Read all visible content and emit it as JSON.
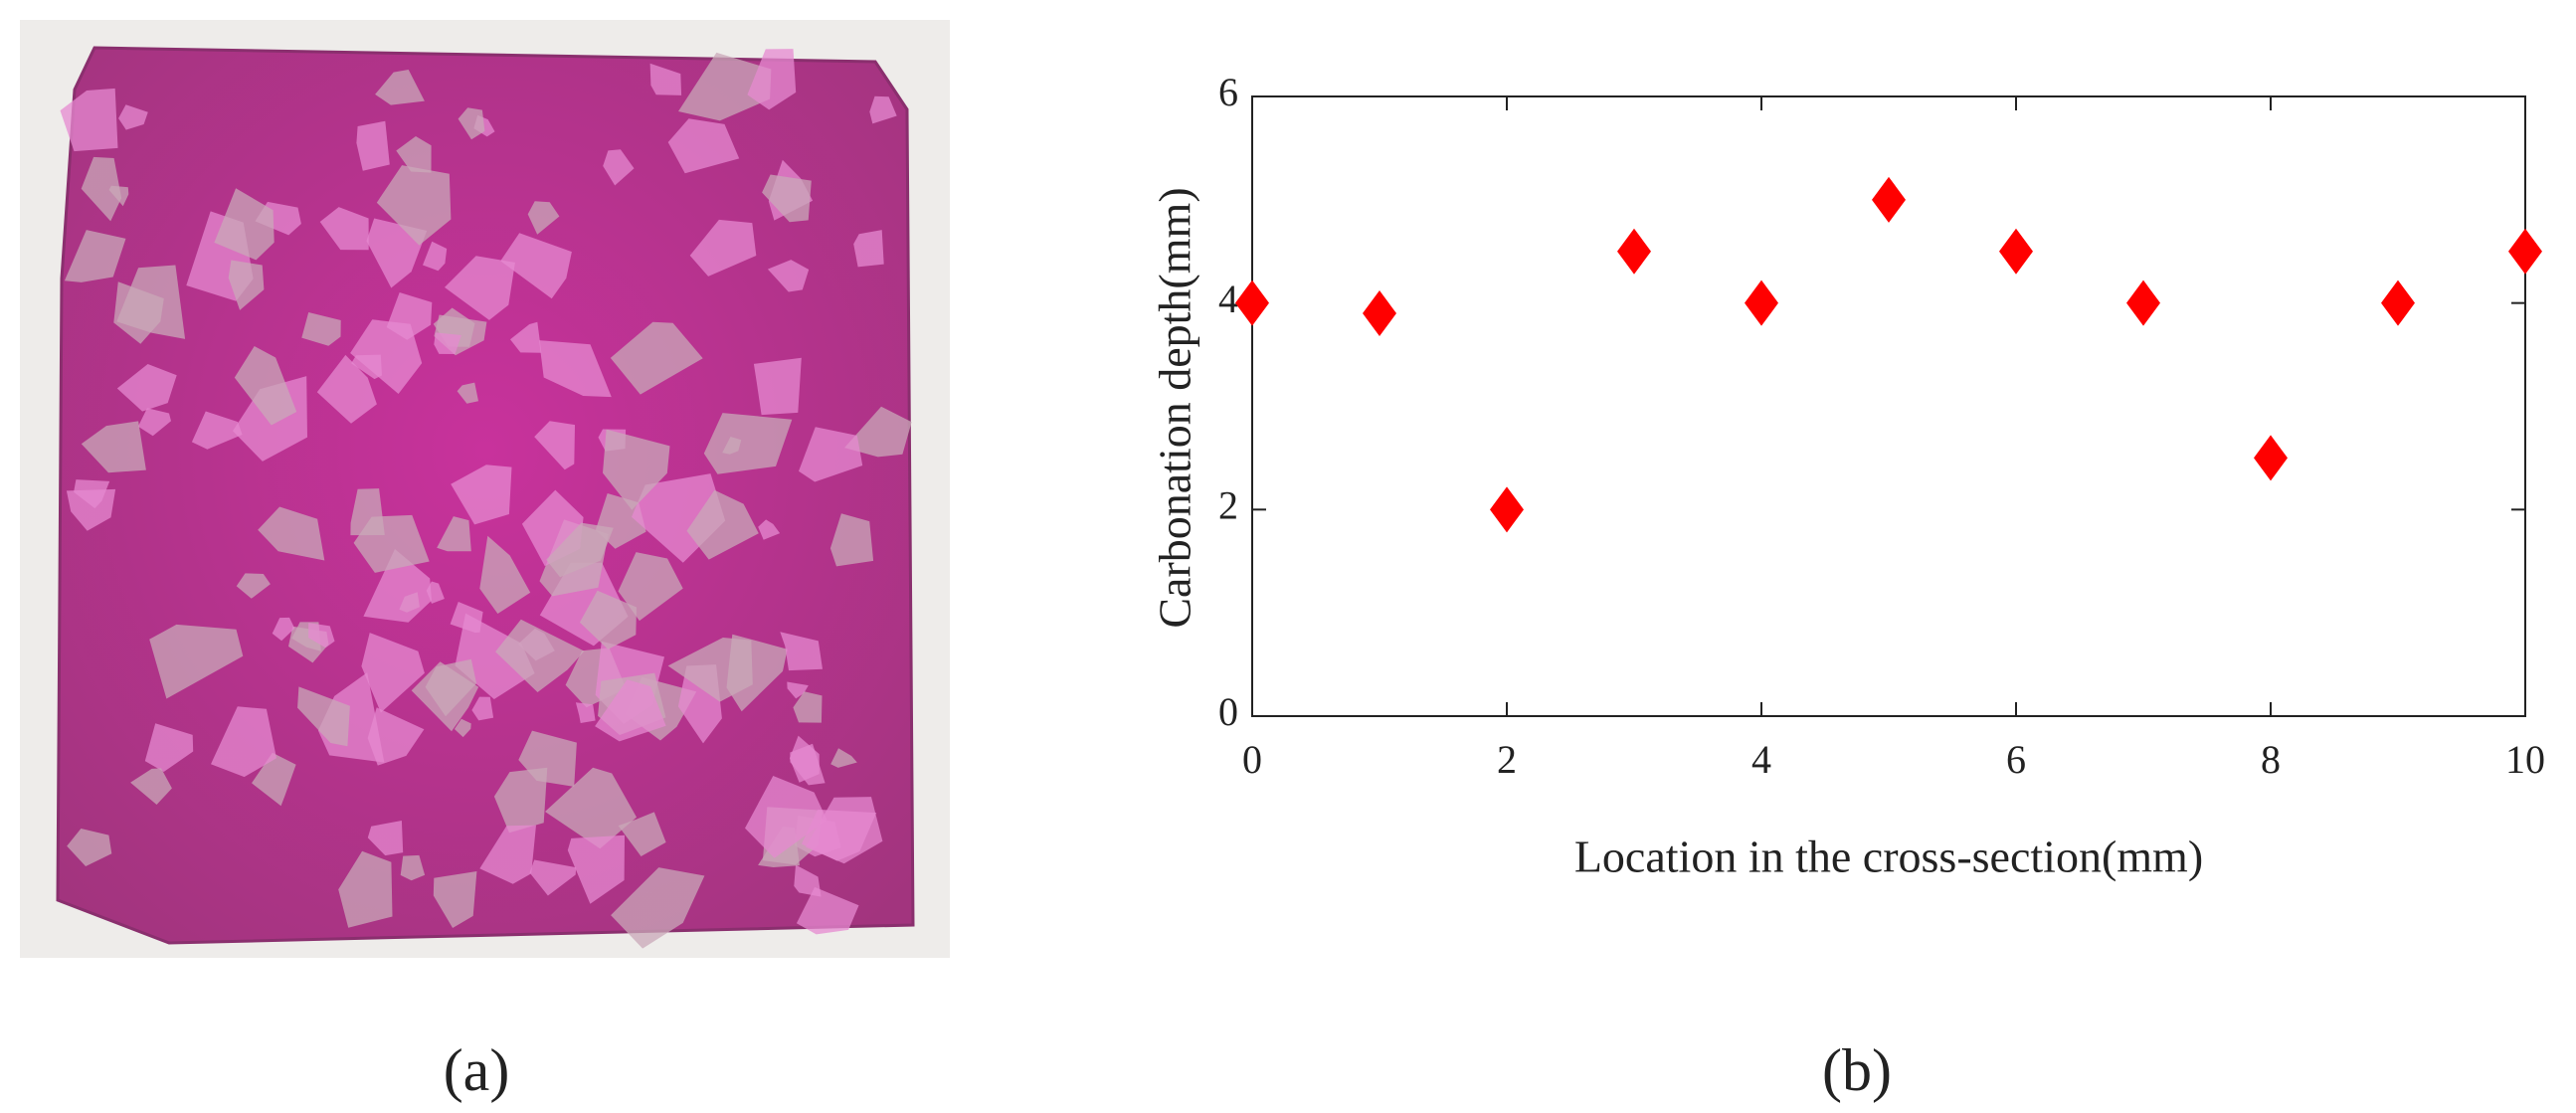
{
  "chart_data": {
    "type": "scatter",
    "x_label": "Location in the cross-section(mm)",
    "y_label": "Carbonation depth(mm)",
    "series": [
      {
        "color": "#ff0000",
        "marker": "diamond",
        "x": [
          0,
          1,
          2,
          3,
          4,
          5,
          6,
          7,
          8,
          9,
          10
        ],
        "values": [
          4,
          3.9,
          2,
          4.5,
          4,
          5,
          4.5,
          4,
          2.5,
          4,
          4.5
        ]
      }
    ],
    "xlim": [
      0,
      10
    ],
    "xticks": [
      0,
      2,
      4,
      6,
      8,
      10
    ],
    "ylim": [
      0,
      6
    ],
    "yticks": [
      0,
      2,
      4,
      6
    ],
    "grid": false
  },
  "panel_labels": [
    "(a)",
    "(b)"
  ]
}
